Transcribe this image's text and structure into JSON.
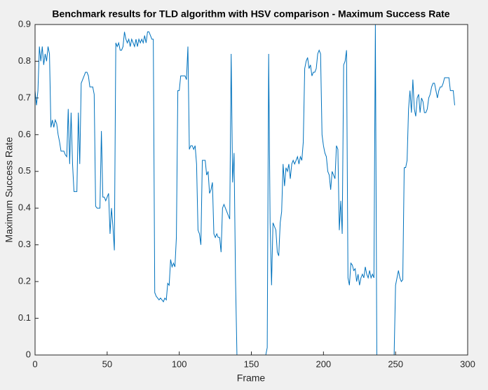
{
  "chart_data": {
    "type": "line",
    "title": "Benchmark results for TLD algorithm with HSV comparison - Maximum Success Rate",
    "xlabel": "Frame",
    "ylabel": "Maximum Success Rate",
    "xlim": [
      0,
      300
    ],
    "xticks": [
      0,
      50,
      100,
      150,
      200,
      250,
      300
    ],
    "ylim": [
      0,
      0.9
    ],
    "yticks": [
      0,
      0.1,
      0.2,
      0.3,
      0.4,
      0.5,
      0.6,
      0.7,
      0.8,
      0.9
    ],
    "grid": false,
    "x": [
      0,
      1,
      2,
      3,
      4,
      5,
      6,
      7,
      8,
      9,
      10,
      11,
      12,
      13,
      14,
      15,
      16,
      17,
      18,
      19,
      20,
      21,
      22,
      23,
      24,
      25,
      26,
      27,
      28,
      29,
      30,
      31,
      32,
      33,
      34,
      35,
      36,
      37,
      38,
      39,
      40,
      41,
      42,
      43,
      44,
      45,
      46,
      47,
      48,
      49,
      50,
      51,
      52,
      53,
      54,
      55,
      56,
      57,
      58,
      59,
      60,
      61,
      62,
      63,
      64,
      65,
      66,
      67,
      68,
      69,
      70,
      71,
      72,
      73,
      74,
      75,
      76,
      77,
      78,
      79,
      80,
      81,
      82,
      83,
      84,
      85,
      86,
      87,
      88,
      89,
      90,
      91,
      92,
      93,
      94,
      95,
      96,
      97,
      98,
      99,
      100,
      101,
      102,
      103,
      104,
      105,
      106,
      107,
      108,
      109,
      110,
      111,
      112,
      113,
      114,
      115,
      116,
      117,
      118,
      119,
      120,
      121,
      122,
      123,
      124,
      125,
      126,
      127,
      128,
      129,
      130,
      131,
      132,
      133,
      134,
      135,
      136,
      137,
      138,
      139,
      140,
      141,
      142,
      143,
      144,
      145,
      146,
      147,
      148,
      149,
      150,
      151,
      152,
      153,
      154,
      155,
      156,
      157,
      158,
      159,
      160,
      161,
      162,
      163,
      164,
      165,
      166,
      167,
      168,
      169,
      170,
      171,
      172,
      173,
      174,
      175,
      176,
      177,
      178,
      179,
      180,
      181,
      182,
      183,
      184,
      185,
      186,
      187,
      188,
      189,
      190,
      191,
      192,
      193,
      194,
      195,
      196,
      197,
      198,
      199,
      200,
      201,
      202,
      203,
      204,
      205,
      206,
      207,
      208,
      209,
      210,
      211,
      212,
      213,
      214,
      215,
      216,
      217,
      218,
      219,
      220,
      221,
      222,
      223,
      224,
      225,
      226,
      227,
      228,
      229,
      230,
      231,
      232,
      233,
      234,
      235,
      236,
      237,
      238,
      239,
      240,
      241,
      242,
      243,
      244,
      245,
      246,
      247,
      248,
      249,
      250,
      251,
      252,
      253,
      254,
      255,
      256,
      257,
      258,
      259,
      260,
      261,
      262,
      263,
      264,
      265,
      266,
      267,
      268,
      269,
      270,
      271,
      272,
      273,
      274,
      275,
      276,
      277,
      278,
      279,
      280,
      281,
      282,
      283,
      284,
      285,
      286,
      287,
      288,
      289,
      290,
      291
    ],
    "series": [
      {
        "color": "#0072bd",
        "values": [
          0.72,
          0.68,
          0.72,
          0.84,
          0.8,
          0.84,
          0.79,
          0.82,
          0.8,
          0.84,
          0.82,
          0.62,
          0.64,
          0.62,
          0.64,
          0.63,
          0.6,
          0.58,
          0.555,
          0.555,
          0.555,
          0.545,
          0.54,
          0.67,
          0.52,
          0.66,
          0.52,
          0.445,
          0.445,
          0.445,
          0.66,
          0.52,
          0.74,
          0.75,
          0.76,
          0.77,
          0.77,
          0.76,
          0.73,
          0.73,
          0.73,
          0.71,
          0.405,
          0.4,
          0.4,
          0.4,
          0.61,
          0.43,
          0.43,
          0.42,
          0.43,
          0.44,
          0.33,
          0.4,
          0.35,
          0.285,
          0.85,
          0.84,
          0.85,
          0.83,
          0.83,
          0.84,
          0.88,
          0.86,
          0.85,
          0.86,
          0.84,
          0.86,
          0.85,
          0.84,
          0.86,
          0.84,
          0.86,
          0.85,
          0.86,
          0.85,
          0.87,
          0.85,
          0.88,
          0.88,
          0.87,
          0.86,
          0.86,
          0.17,
          0.16,
          0.155,
          0.15,
          0.155,
          0.15,
          0.145,
          0.155,
          0.15,
          0.195,
          0.19,
          0.26,
          0.24,
          0.25,
          0.24,
          0.32,
          0.72,
          0.72,
          0.76,
          0.76,
          0.76,
          0.76,
          0.75,
          0.84,
          0.56,
          0.57,
          0.57,
          0.56,
          0.57,
          0.52,
          0.34,
          0.33,
          0.3,
          0.53,
          0.53,
          0.53,
          0.49,
          0.5,
          0.44,
          0.45,
          0.47,
          0.33,
          0.32,
          0.33,
          0.32,
          0.32,
          0.28,
          0.4,
          0.41,
          0.4,
          0.39,
          0.38,
          0.37,
          0.82,
          0.47,
          0.55,
          0.21,
          0,
          0,
          0,
          0,
          0,
          0,
          0,
          0,
          0,
          0,
          0,
          0,
          0,
          0,
          0,
          0,
          0,
          0,
          0,
          0,
          0,
          0.02,
          0.82,
          0.36,
          0.19,
          0.36,
          0.35,
          0.34,
          0.28,
          0.27,
          0.36,
          0.39,
          0.52,
          0.46,
          0.51,
          0.5,
          0.52,
          0.48,
          0.52,
          0.53,
          0.52,
          0.53,
          0.54,
          0.52,
          0.54,
          0.53,
          0.58,
          0.78,
          0.8,
          0.81,
          0.78,
          0.79,
          0.76,
          0.77,
          0.77,
          0.78,
          0.82,
          0.83,
          0.82,
          0.6,
          0.57,
          0.55,
          0.54,
          0.5,
          0.49,
          0.45,
          0.5,
          0.49,
          0.48,
          0.57,
          0.56,
          0.34,
          0.42,
          0.33,
          0.79,
          0.8,
          0.83,
          0.21,
          0.19,
          0.25,
          0.245,
          0.23,
          0.235,
          0.2,
          0.22,
          0.19,
          0.21,
          0.22,
          0.21,
          0.24,
          0.22,
          0.21,
          0.23,
          0.21,
          0.22,
          0.21,
          0.9,
          0,
          0,
          0,
          0,
          0,
          0,
          0,
          0,
          0,
          0,
          0,
          0,
          0,
          0.19,
          0.21,
          0.23,
          0.21,
          0.2,
          0.205,
          0.51,
          0.51,
          0.53,
          0.67,
          0.72,
          0.66,
          0.75,
          0.67,
          0.65,
          0.7,
          0.71,
          0.66,
          0.7,
          0.69,
          0.66,
          0.66,
          0.67,
          0.7,
          0.71,
          0.73,
          0.74,
          0.74,
          0.72,
          0.7,
          0.72,
          0.73,
          0.73,
          0.74,
          0.755,
          0.755,
          0.755,
          0.755,
          0.72,
          0.72,
          0.72,
          0.68
        ]
      }
    ]
  }
}
